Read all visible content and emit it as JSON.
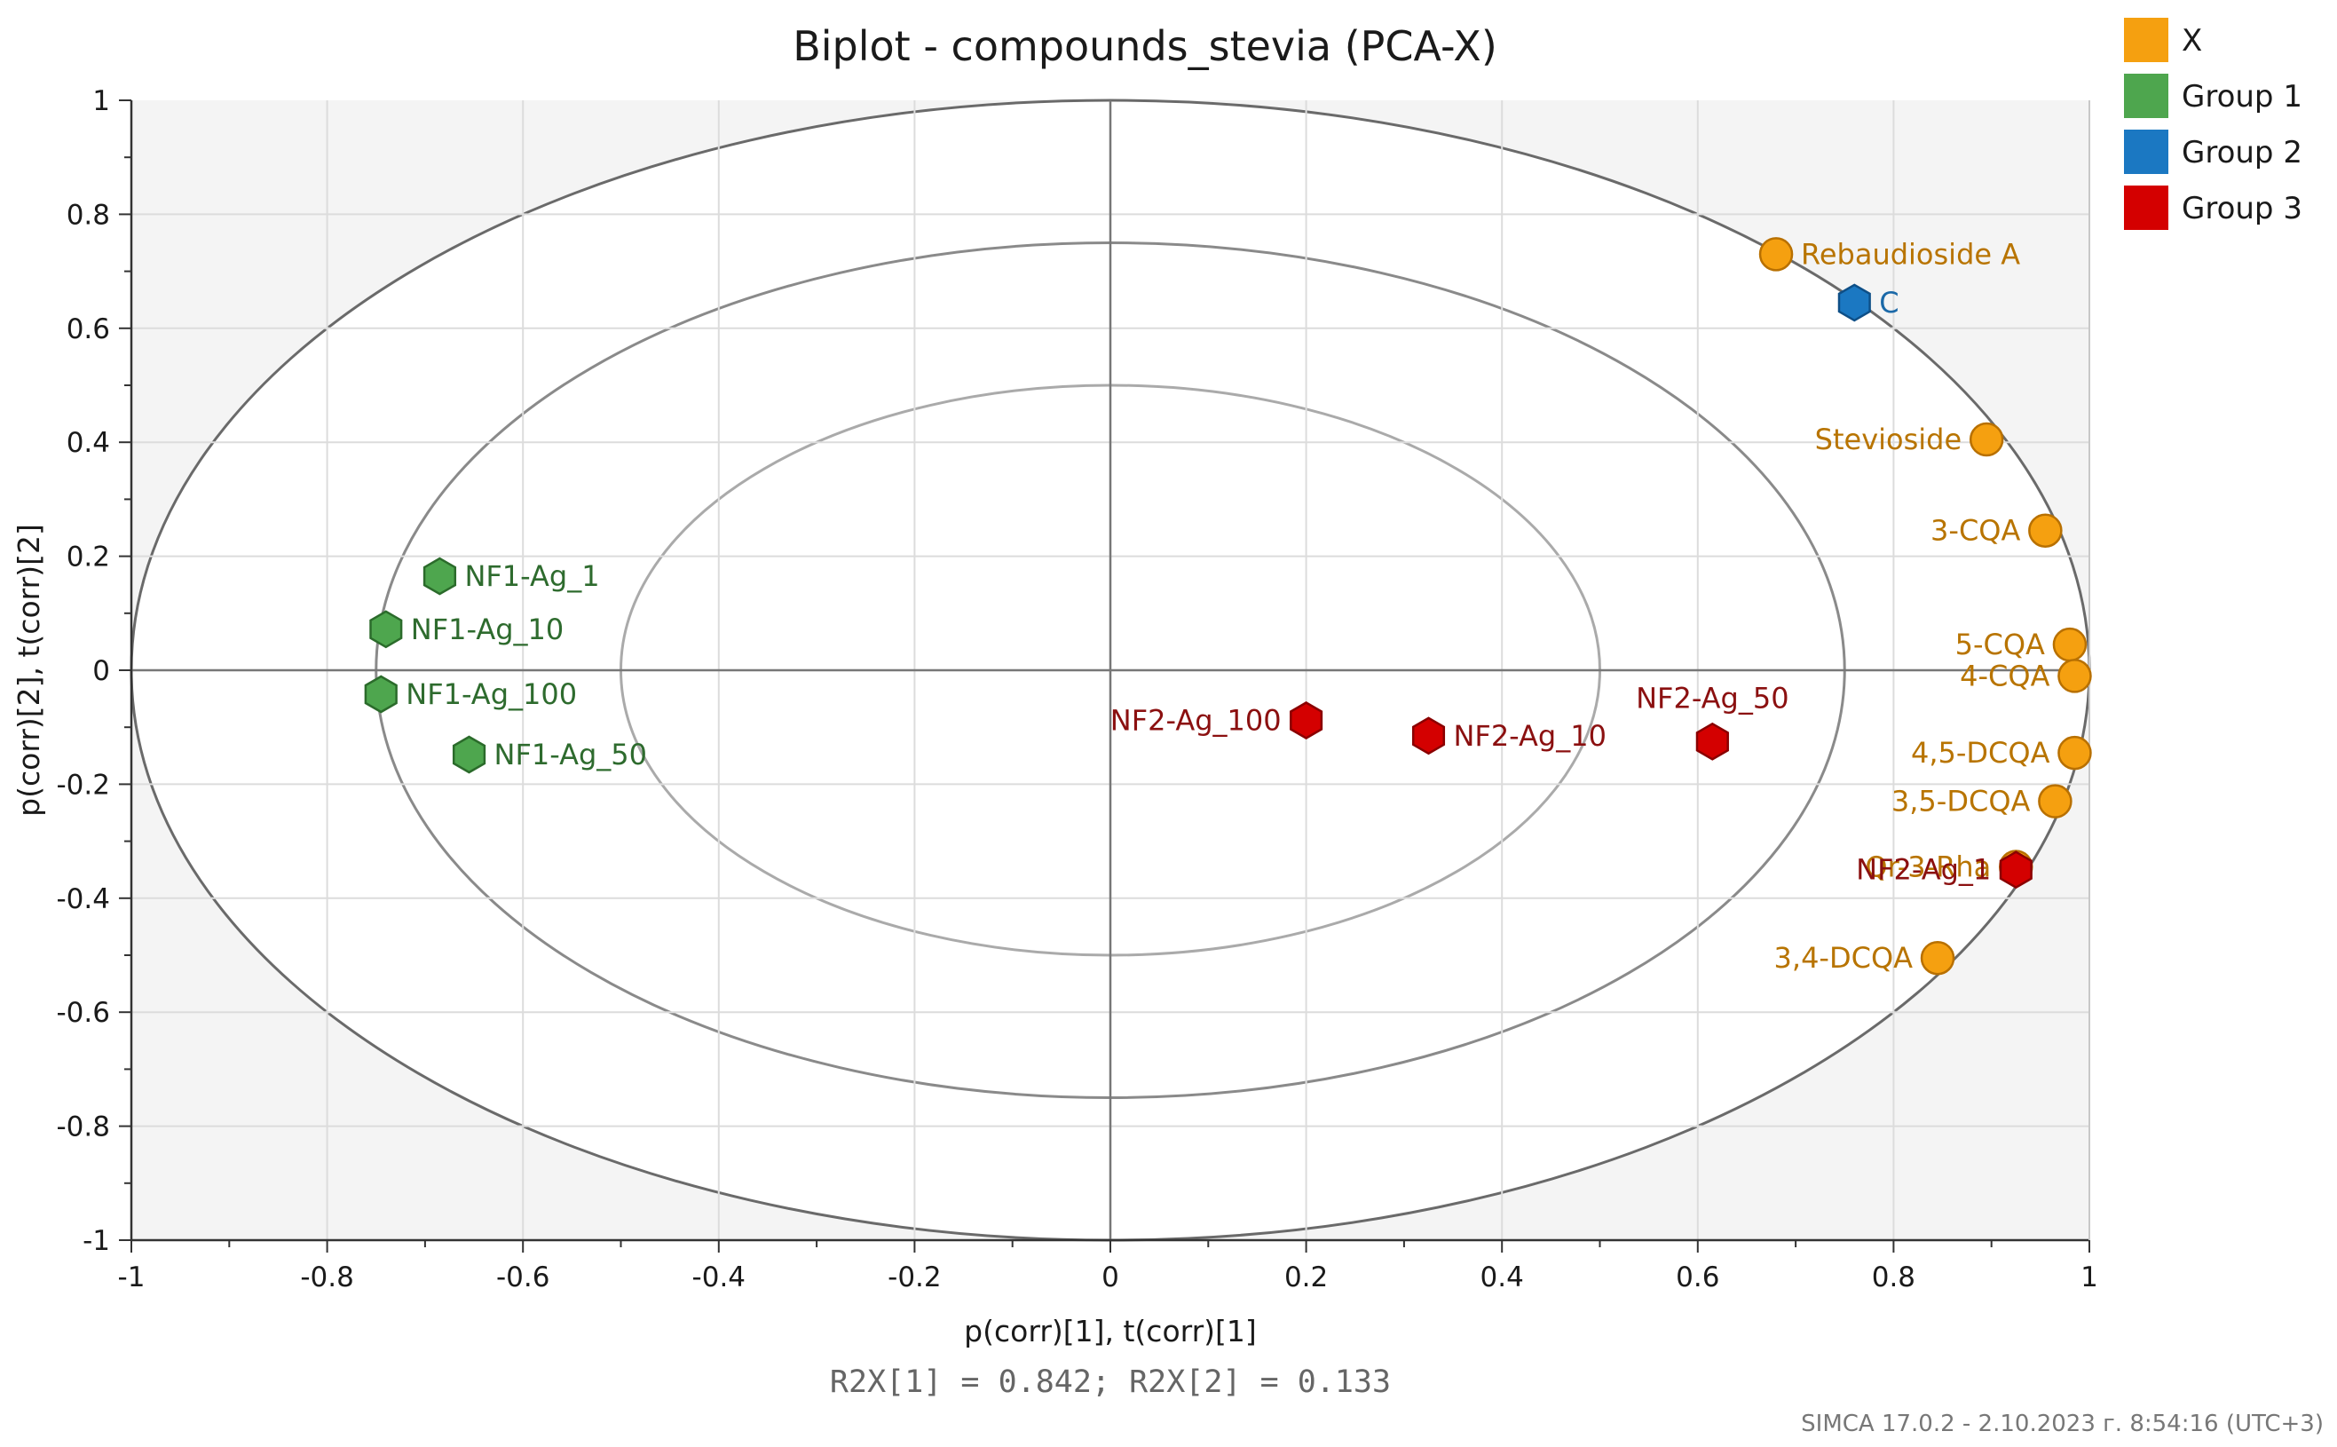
{
  "chart_data": {
    "type": "scatter",
    "title": "Biplot - compounds_stevia (PCA-X)",
    "xlabel": "p(corr)[1], t(corr)[1]",
    "ylabel": "p(corr)[2], t(corr)[2]",
    "xlim": [
      -1,
      1
    ],
    "ylim": [
      -1,
      1
    ],
    "xticks": [
      -1,
      -0.8,
      -0.6,
      -0.4,
      -0.2,
      0,
      0.2,
      0.4,
      0.6,
      0.8,
      1
    ],
    "xtick_labels": [
      "-1",
      "-0.8",
      "-0.6",
      "-0.4",
      "-0.2",
      "0",
      "0.2",
      "0.4",
      "0.6",
      "0.8",
      "1"
    ],
    "yticks": [
      1,
      0.8,
      0.6,
      0.4,
      0.2,
      0,
      -0.2,
      -0.4,
      -0.6,
      -0.8,
      -1
    ],
    "ytick_labels": [
      "1",
      "0.8",
      "0.6",
      "0.4",
      "0.2",
      "0",
      "-0.2",
      "-0.4",
      "-0.6",
      "-0.8",
      "-1"
    ],
    "grid": true,
    "ellipses": [
      1.0,
      0.75,
      0.5
    ],
    "legend_position": "top-right",
    "annotation": "R2X[1] = 0.842; R2X[2] = 0.133",
    "footer": "SIMCA 17.0.2 - 2.10.2023 г. 8:54:16 (UTC+3)",
    "series": [
      {
        "name": "X",
        "marker": "circle",
        "color": "#f5a010",
        "edge": "#b87000",
        "label_color": "#b87400",
        "points": [
          {
            "label": "Rebaudioside A",
            "x": 0.68,
            "y": 0.73,
            "side": "right"
          },
          {
            "label": "Stevioside",
            "x": 0.895,
            "y": 0.405,
            "side": "left"
          },
          {
            "label": "3-CQA",
            "x": 0.955,
            "y": 0.245,
            "side": "left"
          },
          {
            "label": "5-CQA",
            "x": 0.98,
            "y": 0.045,
            "side": "left"
          },
          {
            "label": "4-CQA",
            "x": 0.985,
            "y": -0.01,
            "side": "left"
          },
          {
            "label": "4,5-DCQA",
            "x": 0.985,
            "y": -0.145,
            "side": "left"
          },
          {
            "label": "3,5-DCQA",
            "x": 0.965,
            "y": -0.23,
            "side": "left"
          },
          {
            "label": "Qr-3-Rha",
            "x": 0.925,
            "y": -0.345,
            "side": "left"
          },
          {
            "label": "3,4-DCQA",
            "x": 0.845,
            "y": -0.505,
            "side": "left"
          }
        ]
      },
      {
        "name": "Group 1",
        "marker": "hexagon",
        "color": "#4ea64e",
        "edge": "#2b6b2b",
        "label_color": "#2e6b2e",
        "points": [
          {
            "label": "NF1-Ag_1",
            "x": -0.685,
            "y": 0.165,
            "side": "right"
          },
          {
            "label": "NF1-Ag_10",
            "x": -0.74,
            "y": 0.072,
            "side": "right"
          },
          {
            "label": "NF1-Ag_100",
            "x": -0.745,
            "y": -0.042,
            "side": "right"
          },
          {
            "label": "NF1-Ag_50",
            "x": -0.655,
            "y": -0.148,
            "side": "right"
          }
        ]
      },
      {
        "name": "Group 2",
        "marker": "hexagon",
        "color": "#1b78c2",
        "edge": "#0e4f87",
        "label_color": "#1b69a8",
        "points": [
          {
            "label": "C",
            "x": 0.76,
            "y": 0.645,
            "side": "right"
          }
        ]
      },
      {
        "name": "Group 3",
        "marker": "hexagon",
        "color": "#d40000",
        "edge": "#8a0000",
        "label_color": "#8b1010",
        "points": [
          {
            "label": "NF2-Ag_100",
            "x": 0.2,
            "y": -0.088,
            "side": "left"
          },
          {
            "label": "NF2-Ag_10",
            "x": 0.325,
            "y": -0.115,
            "side": "right"
          },
          {
            "label": "NF2-Ag_50",
            "x": 0.615,
            "y": -0.125,
            "side": "above"
          },
          {
            "label": "NF2-Ag_1",
            "x": 0.925,
            "y": -0.35,
            "side": "left"
          }
        ]
      }
    ]
  }
}
